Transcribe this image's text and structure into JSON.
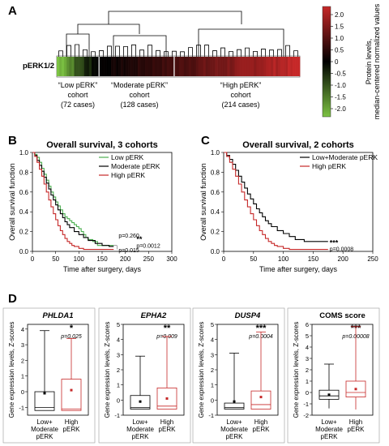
{
  "panel_labels": {
    "A": "A",
    "B": "B",
    "C": "C",
    "D": "D"
  },
  "panel_a": {
    "row_label": "pERK1/2",
    "colorbar_label_1": "Protein levels,",
    "colorbar_label_2": "median-centered normalized values",
    "colorbar_ticks": [
      "2.0",
      "1.5",
      "1.0",
      "0.5",
      "0",
      "-0.5",
      "-1.0",
      "-1.5",
      "-2.0"
    ],
    "colors": {
      "high": "#c62828",
      "mid": "#000000",
      "low": "#7cc242"
    },
    "cohorts": [
      {
        "line1": "“Low pERK”",
        "line2": "cohort",
        "line3": "(72 cases)",
        "cases": 72
      },
      {
        "line1": "“Moderate pERK”",
        "line2": "cohort",
        "line3": "(128 cases)",
        "cases": 128
      },
      {
        "line1": "“High pERK”",
        "line2": "cohort",
        "line3": "(214 cases)",
        "cases": 214
      }
    ]
  },
  "chart_data": [
    {
      "type": "line",
      "panel": "B",
      "title": "Overall survival, 3 cohorts",
      "xlabel": "Time after surgery, days",
      "ylabel": "Overall survival function",
      "xlim": [
        0,
        300
      ],
      "ylim": [
        0.0,
        1.0
      ],
      "xticks": [
        "0",
        "50",
        "100",
        "150",
        "200",
        "250",
        "300"
      ],
      "yticks": [
        "0.0",
        "0.2",
        "0.4",
        "0.6",
        "0.8",
        "1.0"
      ],
      "legend": "top-right",
      "series": [
        {
          "name": "Low pERK",
          "color": "#4caf50",
          "x": [
            0,
            5,
            10,
            15,
            20,
            25,
            30,
            35,
            40,
            45,
            50,
            55,
            60,
            65,
            70,
            75,
            80,
            85,
            90,
            95,
            100,
            105,
            110,
            115,
            120,
            130,
            140,
            150,
            160,
            175
          ],
          "y": [
            1.0,
            0.98,
            0.95,
            0.9,
            0.84,
            0.78,
            0.72,
            0.66,
            0.6,
            0.55,
            0.5,
            0.46,
            0.42,
            0.38,
            0.35,
            0.33,
            0.31,
            0.29,
            0.27,
            0.25,
            0.23,
            0.2,
            0.17,
            0.14,
            0.12,
            0.1,
            0.06,
            0.06,
            0.06,
            0.06
          ]
        },
        {
          "name": "Moderate pERK",
          "color": "#000000",
          "x": [
            0,
            5,
            10,
            15,
            20,
            25,
            30,
            35,
            40,
            45,
            50,
            55,
            60,
            65,
            70,
            75,
            80,
            90,
            100,
            110,
            120,
            135,
            150,
            165,
            175
          ],
          "y": [
            1.0,
            0.97,
            0.92,
            0.87,
            0.81,
            0.75,
            0.69,
            0.63,
            0.57,
            0.52,
            0.47,
            0.42,
            0.38,
            0.34,
            0.3,
            0.27,
            0.24,
            0.2,
            0.17,
            0.14,
            0.11,
            0.08,
            0.06,
            0.05,
            0.05
          ]
        },
        {
          "name": "High pERK",
          "color": "#c62828",
          "x": [
            0,
            5,
            10,
            15,
            20,
            25,
            30,
            35,
            40,
            45,
            50,
            55,
            60,
            65,
            70,
            75,
            80,
            85,
            90,
            100,
            110,
            130,
            150,
            175
          ],
          "y": [
            1.0,
            0.96,
            0.9,
            0.83,
            0.76,
            0.68,
            0.6,
            0.52,
            0.45,
            0.38,
            0.32,
            0.26,
            0.21,
            0.17,
            0.13,
            0.1,
            0.08,
            0.06,
            0.05,
            0.03,
            0.02,
            0.02,
            0.02,
            0.02
          ]
        }
      ],
      "annotations": [
        "p=0.260",
        "p=0.015",
        "**",
        "p=0.0012"
      ]
    },
    {
      "type": "line",
      "panel": "C",
      "title": "Overall survival, 2 cohorts",
      "xlabel": "Time after surgery, days",
      "ylabel": "Overall survival function",
      "xlim": [
        0,
        250
      ],
      "ylim": [
        0.0,
        1.0
      ],
      "xticks": [
        "0",
        "50",
        "100",
        "150",
        "200",
        "250"
      ],
      "yticks": [
        "0.0",
        "0.2",
        "0.4",
        "0.6",
        "0.8",
        "1.0"
      ],
      "legend": "top-right",
      "series": [
        {
          "name": "Low+Moderate pERK",
          "color": "#000000",
          "x": [
            0,
            5,
            10,
            15,
            20,
            25,
            30,
            35,
            40,
            45,
            50,
            55,
            60,
            65,
            70,
            75,
            80,
            90,
            100,
            110,
            120,
            135,
            150,
            165,
            175
          ],
          "y": [
            1.0,
            0.97,
            0.93,
            0.88,
            0.82,
            0.76,
            0.7,
            0.64,
            0.58,
            0.53,
            0.48,
            0.43,
            0.39,
            0.35,
            0.31,
            0.28,
            0.25,
            0.21,
            0.18,
            0.15,
            0.12,
            0.1,
            0.1,
            0.1,
            0.1
          ]
        },
        {
          "name": "High pERK",
          "color": "#c62828",
          "x": [
            0,
            5,
            10,
            15,
            20,
            25,
            30,
            35,
            40,
            45,
            50,
            55,
            60,
            65,
            70,
            75,
            80,
            85,
            90,
            100,
            110,
            130,
            150,
            175
          ],
          "y": [
            1.0,
            0.96,
            0.9,
            0.83,
            0.76,
            0.68,
            0.6,
            0.52,
            0.45,
            0.38,
            0.32,
            0.26,
            0.21,
            0.17,
            0.13,
            0.1,
            0.08,
            0.06,
            0.05,
            0.03,
            0.02,
            0.02,
            0.02,
            0.02
          ]
        }
      ],
      "annotations": [
        "***",
        "p=0.0008"
      ]
    },
    {
      "type": "box",
      "panel": "D1",
      "title": "PHLDA1",
      "ylabel": "Gene expression levels, Z-scores",
      "ylim": [
        -1.5,
        4.3
      ],
      "yticks": [
        "-1",
        "0",
        "1",
        "2",
        "3",
        "4"
      ],
      "significance": "*",
      "p_label": "p=0.025",
      "groups": [
        {
          "label_line1": "Low+",
          "label_line2": "Moderate",
          "label_line3": "pERK",
          "color": "#000000",
          "min": -1.2,
          "q1": -1.2,
          "median": -1.0,
          "q3": 0.0,
          "max": 3.9,
          "mean": -0.1
        },
        {
          "label_line1": "High",
          "label_line2": "pERK",
          "label_line3": "",
          "color": "#c62828",
          "min": -1.2,
          "q1": -1.2,
          "median": -1.1,
          "q3": 0.8,
          "max": 3.4,
          "mean": 0.1
        }
      ]
    },
    {
      "type": "box",
      "panel": "D2",
      "title": "EPHA2",
      "ylabel": "Gene expression levels, Z-scores",
      "ylim": [
        -1.0,
        5.0
      ],
      "yticks": [
        "-1",
        "0",
        "1",
        "2",
        "3",
        "4",
        "5"
      ],
      "significance": "**",
      "p_label": "p=0.009",
      "groups": [
        {
          "label_line1": "Low+",
          "label_line2": "Moderate",
          "label_line3": "pERK",
          "color": "#000000",
          "min": -0.6,
          "q1": -0.6,
          "median": -0.5,
          "q3": 0.3,
          "max": 2.9,
          "mean": -0.1
        },
        {
          "label_line1": "High",
          "label_line2": "pERK",
          "label_line3": "",
          "color": "#c62828",
          "min": -0.6,
          "q1": -0.6,
          "median": -0.4,
          "q3": 0.8,
          "max": 4.2,
          "mean": 0.1
        }
      ]
    },
    {
      "type": "box",
      "panel": "D3",
      "title": "DUSP4",
      "ylabel": "Gene expression levels, Z-scores",
      "ylim": [
        -1.0,
        5.0
      ],
      "yticks": [
        "-1",
        "0",
        "1",
        "2",
        "3",
        "4",
        "5"
      ],
      "significance": "***",
      "p_label": "p=0.0004",
      "groups": [
        {
          "label_line1": "Low+",
          "label_line2": "Moderate",
          "label_line3": "pERK",
          "color": "#000000",
          "min": -0.6,
          "q1": -0.6,
          "median": -0.5,
          "q3": -0.2,
          "max": 3.1,
          "mean": -0.1
        },
        {
          "label_line1": "High",
          "label_line2": "pERK",
          "label_line3": "",
          "color": "#c62828",
          "min": -0.6,
          "q1": -0.6,
          "median": -0.3,
          "q3": 0.6,
          "max": 4.5,
          "mean": 0.2
        }
      ]
    },
    {
      "type": "box",
      "panel": "D4",
      "title": "COMS score",
      "ylabel": "Gene expression levels, Z-scores",
      "ylim": [
        -2.0,
        6.0
      ],
      "yticks": [
        "-2",
        "-1",
        "0",
        "1",
        "2",
        "3",
        "4",
        "5",
        "6"
      ],
      "significance": "***",
      "p_label": "p=0.00008",
      "groups": [
        {
          "label_line1": "Low+",
          "label_line2": "Moderate",
          "label_line3": "pERK",
          "color": "#000000",
          "min": -1.4,
          "q1": -0.6,
          "median": -0.3,
          "q3": 0.2,
          "max": 2.5,
          "mean": -0.2
        },
        {
          "label_line1": "High",
          "label_line2": "pERK",
          "label_line3": "",
          "color": "#c62828",
          "min": -1.5,
          "q1": -0.4,
          "median": 0.0,
          "q3": 1.0,
          "max": 5.8,
          "mean": 0.3
        }
      ]
    }
  ]
}
